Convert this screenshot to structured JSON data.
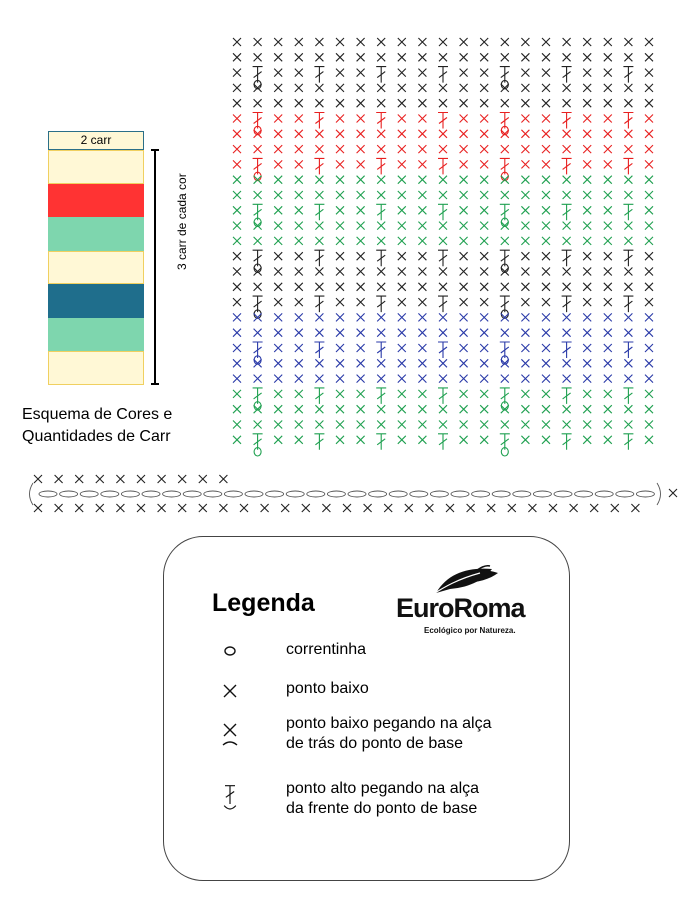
{
  "colors": {
    "cream": "#fff8d6",
    "red": "#ff3333",
    "mint": "#7ed6ae",
    "teal": "#1f6e8c",
    "border_yellow": "#f0d060",
    "border_teal": "#2b6f87",
    "stitch_black": "#222222",
    "stitch_red": "#e82020",
    "stitch_green": "#1fa050",
    "stitch_blue": "#2a3aa8"
  },
  "color_scheme": {
    "top_label": "2 carr",
    "side_label": "3 carr de cada cor",
    "caption_line1": "Esquema de Cores e",
    "caption_line2": "Quantidades de Carr",
    "stripes": [
      "cream",
      "red",
      "mint",
      "cream",
      "teal",
      "mint",
      "cream"
    ]
  },
  "chart": {
    "bands_from_top": [
      "black",
      "red",
      "green",
      "black",
      "blue",
      "green"
    ]
  },
  "legend": {
    "title": "Legenda",
    "brand_name": "EuroRoma",
    "brand_tagline": "Ecológico por Natureza.",
    "items": [
      {
        "icon": "chain-stitch-icon",
        "line1": "correntinha",
        "line2": ""
      },
      {
        "icon": "single-crochet-icon",
        "line1": "ponto baixo",
        "line2": ""
      },
      {
        "icon": "back-loop-single-crochet-icon",
        "line1": "ponto baixo pegando na alça",
        "line2": "de trás do ponto de base"
      },
      {
        "icon": "front-loop-double-crochet-icon",
        "line1": "ponto alto pegando na alça",
        "line2": "da frente do ponto de base"
      }
    ]
  }
}
